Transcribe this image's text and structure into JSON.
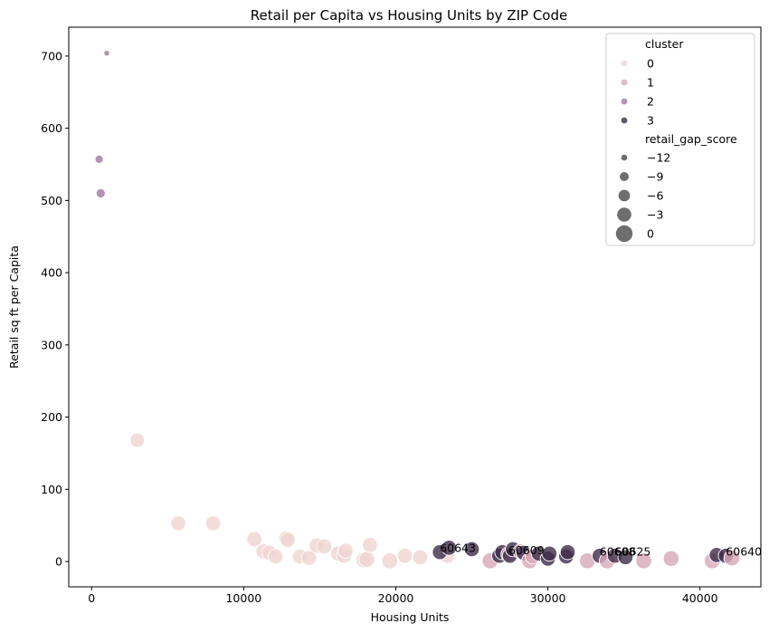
{
  "chart_data": {
    "type": "scatter",
    "title": "Retail per Capita vs Housing Units by ZIP Code",
    "xlabel": "Housing Units",
    "ylabel": "Retail sq ft per Capita",
    "xlim": [
      -1500,
      44000
    ],
    "ylim": [
      -35,
      740
    ],
    "xticks": [
      0,
      10000,
      20000,
      30000,
      40000
    ],
    "yticks": [
      0,
      100,
      200,
      300,
      400,
      500,
      600,
      700
    ],
    "grid": false,
    "legend_position": "top-right",
    "legend": {
      "hue_title": "cluster",
      "size_title": "retail_gap_score",
      "clusters": [
        {
          "label": "0",
          "color": "#efd5d2"
        },
        {
          "label": "1",
          "color": "#d8a7b8"
        },
        {
          "label": "2",
          "color": "#a1779f"
        },
        {
          "label": "3",
          "color": "#3d2c48"
        }
      ],
      "sizes": [
        {
          "label": "−12",
          "value": -12
        },
        {
          "label": "−9",
          "value": -9
        },
        {
          "label": "−6",
          "value": -6
        },
        {
          "label": "−3",
          "value": -3
        },
        {
          "label": "0",
          "value": 0
        }
      ]
    },
    "points": [
      {
        "x": 1000,
        "y": 704,
        "cluster": 2,
        "gap": -12
      },
      {
        "x": 500,
        "y": 557,
        "cluster": 2,
        "gap": -9
      },
      {
        "x": 600,
        "y": 510,
        "cluster": 2,
        "gap": -8
      },
      {
        "x": 3000,
        "y": 168,
        "cluster": 0,
        "gap": -2
      },
      {
        "x": 5700,
        "y": 53,
        "cluster": 0,
        "gap": -1
      },
      {
        "x": 8000,
        "y": 53,
        "cluster": 0,
        "gap": -1
      },
      {
        "x": 10700,
        "y": 31,
        "cluster": 0,
        "gap": -1
      },
      {
        "x": 11300,
        "y": 14,
        "cluster": 0,
        "gap": -1
      },
      {
        "x": 11700,
        "y": 12,
        "cluster": 0,
        "gap": -1
      },
      {
        "x": 12100,
        "y": 7,
        "cluster": 0,
        "gap": -1
      },
      {
        "x": 12800,
        "y": 32,
        "cluster": 0,
        "gap": -1
      },
      {
        "x": 12900,
        "y": 30,
        "cluster": 0,
        "gap": -1
      },
      {
        "x": 13700,
        "y": 7,
        "cluster": 0,
        "gap": -1
      },
      {
        "x": 14300,
        "y": 5,
        "cluster": 0,
        "gap": -1
      },
      {
        "x": 14800,
        "y": 22,
        "cluster": 0,
        "gap": -1
      },
      {
        "x": 15300,
        "y": 21,
        "cluster": 0,
        "gap": -1
      },
      {
        "x": 16200,
        "y": 11,
        "cluster": 0,
        "gap": -1
      },
      {
        "x": 16600,
        "y": 8,
        "cluster": 0,
        "gap": -1
      },
      {
        "x": 16700,
        "y": 15,
        "cluster": 0,
        "gap": -1
      },
      {
        "x": 17900,
        "y": 2,
        "cluster": 0,
        "gap": 0
      },
      {
        "x": 18100,
        "y": 3,
        "cluster": 0,
        "gap": 0
      },
      {
        "x": 18300,
        "y": 23,
        "cluster": 0,
        "gap": -1
      },
      {
        "x": 19600,
        "y": 1,
        "cluster": 0,
        "gap": 0
      },
      {
        "x": 20600,
        "y": 8,
        "cluster": 0,
        "gap": -1
      },
      {
        "x": 21600,
        "y": 6,
        "cluster": 0,
        "gap": -1
      },
      {
        "x": 23400,
        "y": 8,
        "cluster": 0,
        "gap": -1
      },
      {
        "x": 22900,
        "y": 13,
        "cluster": 3,
        "gap": -1,
        "label": "60643"
      },
      {
        "x": 23500,
        "y": 19,
        "cluster": 3,
        "gap": -1
      },
      {
        "x": 25000,
        "y": 17,
        "cluster": 3,
        "gap": -1
      },
      {
        "x": 26200,
        "y": 1,
        "cluster": 1,
        "gap": 0
      },
      {
        "x": 26800,
        "y": 8,
        "cluster": 3,
        "gap": -1
      },
      {
        "x": 27000,
        "y": 13,
        "cluster": 3,
        "gap": -1
      },
      {
        "x": 27400,
        "y": 10,
        "cluster": 1,
        "gap": -1,
        "label": "60609"
      },
      {
        "x": 27500,
        "y": 8,
        "cluster": 3,
        "gap": -1
      },
      {
        "x": 27700,
        "y": 17,
        "cluster": 3,
        "gap": -1
      },
      {
        "x": 28200,
        "y": 14,
        "cluster": 1,
        "gap": -1
      },
      {
        "x": 28400,
        "y": 12,
        "cluster": 3,
        "gap": -1
      },
      {
        "x": 28800,
        "y": 1,
        "cluster": 1,
        "gap": 0
      },
      {
        "x": 29000,
        "y": 7,
        "cluster": 1,
        "gap": -1
      },
      {
        "x": 29400,
        "y": 11,
        "cluster": 3,
        "gap": -1
      },
      {
        "x": 30000,
        "y": 4,
        "cluster": 3,
        "gap": -1
      },
      {
        "x": 30100,
        "y": 11,
        "cluster": 3,
        "gap": -1
      },
      {
        "x": 31200,
        "y": 7,
        "cluster": 3,
        "gap": -1
      },
      {
        "x": 31300,
        "y": 13,
        "cluster": 3,
        "gap": -1
      },
      {
        "x": 32600,
        "y": 1,
        "cluster": 1,
        "gap": 0
      },
      {
        "x": 33400,
        "y": 8,
        "cluster": 3,
        "gap": -1,
        "label": "60608"
      },
      {
        "x": 33900,
        "y": 1,
        "cluster": 1,
        "gap": 0
      },
      {
        "x": 34400,
        "y": 8,
        "cluster": 3,
        "gap": -1,
        "label": "60625"
      },
      {
        "x": 35100,
        "y": 6,
        "cluster": 3,
        "gap": -1
      },
      {
        "x": 36300,
        "y": 1,
        "cluster": 1,
        "gap": 0
      },
      {
        "x": 38100,
        "y": 4,
        "cluster": 1,
        "gap": 0
      },
      {
        "x": 40800,
        "y": 1,
        "cluster": 1,
        "gap": 0
      },
      {
        "x": 41100,
        "y": 9,
        "cluster": 3,
        "gap": -1
      },
      {
        "x": 41700,
        "y": 8,
        "cluster": 3,
        "gap": -1,
        "label": "60640"
      },
      {
        "x": 42100,
        "y": 5,
        "cluster": 1,
        "gap": 0
      }
    ]
  }
}
